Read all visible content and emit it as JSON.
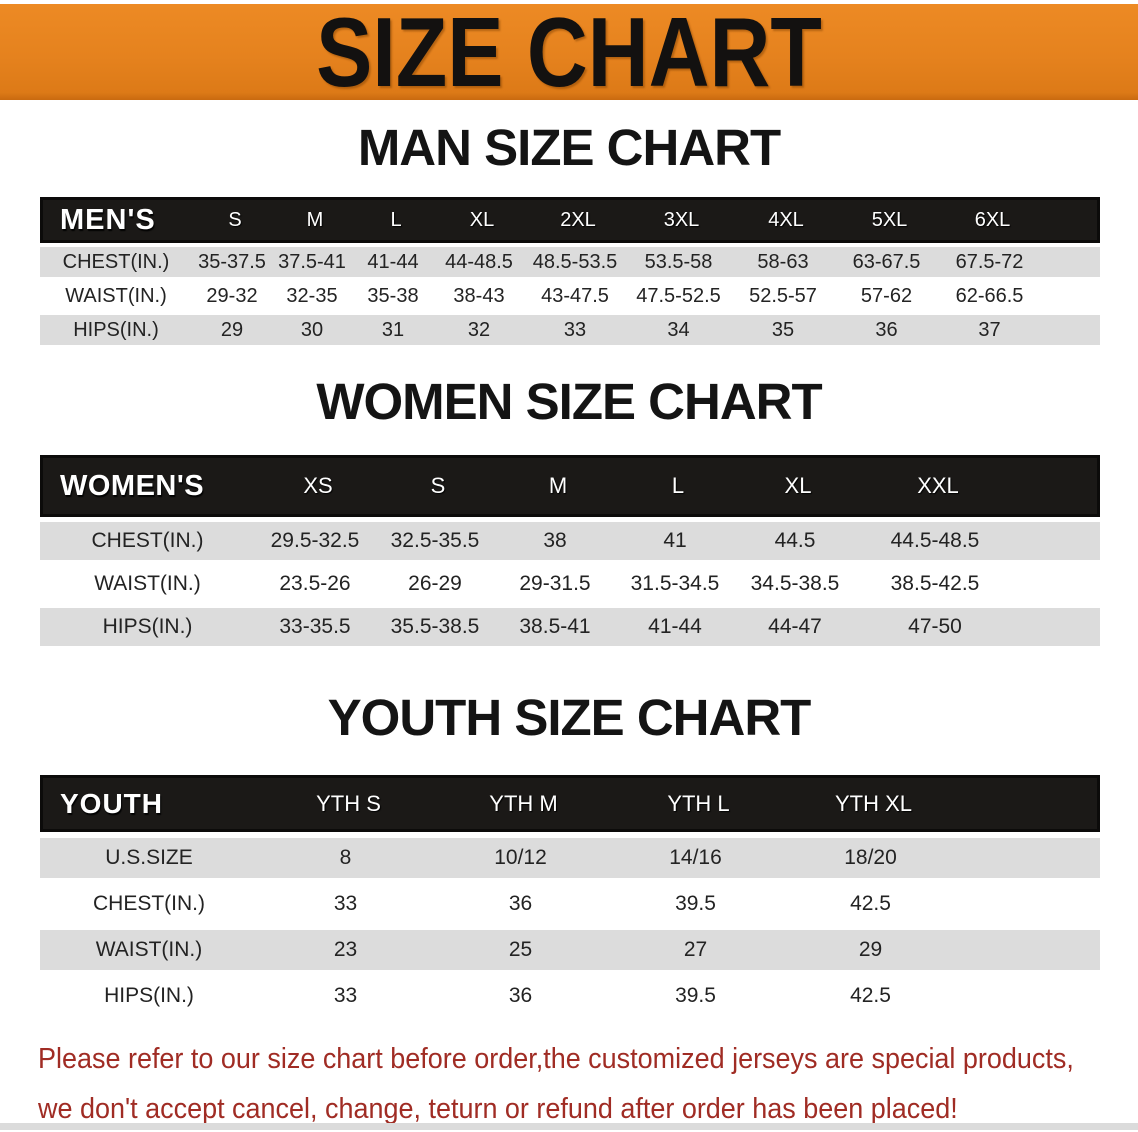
{
  "banner": {
    "title": "SIZE CHART",
    "bg_color": "#E5821E",
    "text_color": "#131110"
  },
  "colors": {
    "header_bar": "#1B1917",
    "row_gray": "#DCDCDC",
    "row_white": "#FFFFFF",
    "footer_red": "#A02C24"
  },
  "sections": [
    {
      "heading": "MAN SIZE CHART",
      "table": {
        "name": "MEN'S",
        "sizes": [
          "S",
          "M",
          "L",
          "XL",
          "2XL",
          "3XL",
          "4XL",
          "5XL",
          "6XL"
        ],
        "rows": [
          {
            "label": "CHEST(IN.)",
            "values": [
              "35-37.5",
              "37.5-41",
              "41-44",
              "44-48.5",
              "48.5-53.5",
              "53.5-58",
              "58-63",
              "63-67.5",
              "67.5-72"
            ]
          },
          {
            "label": "WAIST(IN.)",
            "values": [
              "29-32",
              "32-35",
              "35-38",
              "38-43",
              "43-47.5",
              "47.5-52.5",
              "52.5-57",
              "57-62",
              "62-66.5"
            ]
          },
          {
            "label": "HIPS(IN.)",
            "values": [
              "29",
              "30",
              "31",
              "32",
              "33",
              "34",
              "35",
              "36",
              "37"
            ]
          }
        ]
      }
    },
    {
      "heading": "WOMEN SIZE CHART",
      "table": {
        "name": "WOMEN'S",
        "sizes": [
          "XS",
          "S",
          "M",
          "L",
          "XL",
          "XXL"
        ],
        "rows": [
          {
            "label": "CHEST(IN.)",
            "values": [
              "29.5-32.5",
              "32.5-35.5",
              "38",
              "41",
              "44.5",
              "44.5-48.5"
            ]
          },
          {
            "label": "WAIST(IN.)",
            "values": [
              "23.5-26",
              "26-29",
              "29-31.5",
              "31.5-34.5",
              "34.5-38.5",
              "38.5-42.5"
            ]
          },
          {
            "label": "HIPS(IN.)",
            "values": [
              "33-35.5",
              "35.5-38.5",
              "38.5-41",
              "41-44",
              "44-47",
              "47-50"
            ]
          }
        ]
      }
    },
    {
      "heading": "YOUTH SIZE CHART",
      "table": {
        "name": "YOUTH",
        "sizes": [
          "YTH S",
          "YTH M",
          "YTH L",
          "YTH XL"
        ],
        "rows": [
          {
            "label": "U.S.SIZE",
            "values": [
              "8",
              "10/12",
              "14/16",
              "18/20"
            ]
          },
          {
            "label": "CHEST(IN.)",
            "values": [
              "33",
              "36",
              "39.5",
              "42.5"
            ]
          },
          {
            "label": "WAIST(IN.)",
            "values": [
              "23",
              "25",
              "27",
              "29"
            ]
          },
          {
            "label": "HIPS(IN.)",
            "values": [
              "33",
              "36",
              "39.5",
              "42.5"
            ]
          }
        ]
      }
    }
  ],
  "footer": {
    "line1": "Please refer to our size chart before order,the customized jerseys are special products,",
    "line2": "we don't accept cancel, change, teturn or refund after order has been placed!"
  }
}
